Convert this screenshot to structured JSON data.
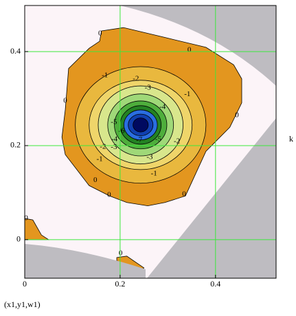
{
  "chart_data": {
    "type": "contour",
    "x_label": "k",
    "footnote": "(x1,y1,w1)",
    "xlim": [
      0,
      0.527
    ],
    "ylim": [
      -0.082,
      0.498
    ],
    "xticks": [
      0,
      0.2,
      0.4
    ],
    "yticks": [
      0,
      0.2,
      0.4
    ],
    "grid": true,
    "grid_color": "#3ce83c",
    "regions": [
      {
        "level": 0,
        "color": "#e3961f",
        "points": [
          [
            0.161,
            0.444
          ],
          [
            0.207,
            0.451
          ],
          [
            0.294,
            0.43
          ],
          [
            0.38,
            0.409
          ],
          [
            0.438,
            0.372
          ],
          [
            0.455,
            0.342
          ],
          [
            0.455,
            0.291
          ],
          [
            0.43,
            0.239
          ],
          [
            0.38,
            0.188
          ],
          [
            0.337,
            0.093
          ],
          [
            0.294,
            0.079
          ],
          [
            0.258,
            0.072
          ],
          [
            0.214,
            0.079
          ],
          [
            0.178,
            0.093
          ],
          [
            0.135,
            0.115
          ],
          [
            0.085,
            0.181
          ],
          [
            0.078,
            0.218
          ],
          [
            0.085,
            0.276
          ],
          [
            0.092,
            0.364
          ],
          [
            0.135,
            0.407
          ],
          [
            0.157,
            0.422
          ]
        ]
      },
      {
        "level": 0,
        "color": "#e3961f",
        "points": [
          [
            0.0,
            0.045
          ],
          [
            0.017,
            0.042
          ],
          [
            0.035,
            0.01
          ],
          [
            0.05,
            0.0
          ],
          [
            0.0,
            0.0
          ]
        ]
      },
      {
        "level": 0,
        "color": "#e3961f",
        "points": [
          [
            0.193,
            -0.038
          ],
          [
            0.214,
            -0.035
          ],
          [
            0.25,
            -0.06
          ],
          [
            0.243,
            -0.068
          ],
          [
            0.193,
            -0.045
          ]
        ]
      }
    ],
    "rings": [
      {
        "level": -1,
        "color": "#e9b83e",
        "cx": 0.243,
        "cy": 0.244,
        "rx": 0.137,
        "ry": 0.124
      },
      {
        "level": -2,
        "color": "#efd56a",
        "cx": 0.243,
        "cy": 0.244,
        "rx": 0.108,
        "ry": 0.095
      },
      {
        "level": -3,
        "color": "#d8e68c",
        "cx": 0.243,
        "cy": 0.244,
        "rx": 0.089,
        "ry": 0.083
      },
      {
        "level": -4,
        "color": "#9fd878",
        "cx": 0.243,
        "cy": 0.244,
        "rx": 0.069,
        "ry": 0.066
      },
      {
        "level": -5,
        "color": "#4eae3c",
        "cx": 0.243,
        "cy": 0.244,
        "rx": 0.055,
        "ry": 0.051
      },
      {
        "level": -6,
        "color": "#238223",
        "cx": 0.243,
        "cy": 0.244,
        "rx": 0.043,
        "ry": 0.041
      },
      {
        "level": -7,
        "color": "#2a6ee0",
        "cx": 0.243,
        "cy": 0.244,
        "rx": 0.035,
        "ry": 0.032
      },
      {
        "level": -8,
        "color": "#1040b0",
        "cx": 0.243,
        "cy": 0.244,
        "rx": 0.026,
        "ry": 0.023
      },
      {
        "level": -9,
        "color": "#000a60",
        "cx": 0.243,
        "cy": 0.244,
        "rx": 0.016,
        "ry": 0.015
      }
    ],
    "contour_labels": [
      {
        "value": 0,
        "x": 0.158,
        "y": 0.438
      },
      {
        "value": 0,
        "x": 0.345,
        "y": 0.403
      },
      {
        "value": 0,
        "x": 0.085,
        "y": 0.295
      },
      {
        "value": 0,
        "x": 0.445,
        "y": 0.264
      },
      {
        "value": 0,
        "x": 0.148,
        "y": 0.126
      },
      {
        "value": 0,
        "x": 0.177,
        "y": 0.095
      },
      {
        "value": 0,
        "x": 0.334,
        "y": 0.096
      },
      {
        "value": 0,
        "x": 0.003,
        "y": 0.045
      },
      {
        "value": 0,
        "x": 0.201,
        "y": -0.029
      },
      {
        "value": -1,
        "x": 0.168,
        "y": 0.349
      },
      {
        "value": -1,
        "x": 0.341,
        "y": 0.309
      },
      {
        "value": -1,
        "x": 0.157,
        "y": 0.171
      },
      {
        "value": -1,
        "x": 0.271,
        "y": 0.14
      },
      {
        "value": -2,
        "x": 0.233,
        "y": 0.342
      },
      {
        "value": -2,
        "x": 0.319,
        "y": 0.209
      },
      {
        "value": -2,
        "x": 0.164,
        "y": 0.197
      },
      {
        "value": -3,
        "x": 0.258,
        "y": 0.323
      },
      {
        "value": -3,
        "x": 0.262,
        "y": 0.175
      },
      {
        "value": -3,
        "x": 0.187,
        "y": 0.196
      },
      {
        "value": -4,
        "x": 0.289,
        "y": 0.282
      },
      {
        "value": -4,
        "x": 0.188,
        "y": 0.213
      },
      {
        "value": -5,
        "x": 0.187,
        "y": 0.25
      },
      {
        "value": -5,
        "x": 0.28,
        "y": 0.213
      },
      {
        "value": -6,
        "x": 0.203,
        "y": 0.231
      },
      {
        "value": -7,
        "x": 0.24,
        "y": 0.212
      }
    ]
  }
}
